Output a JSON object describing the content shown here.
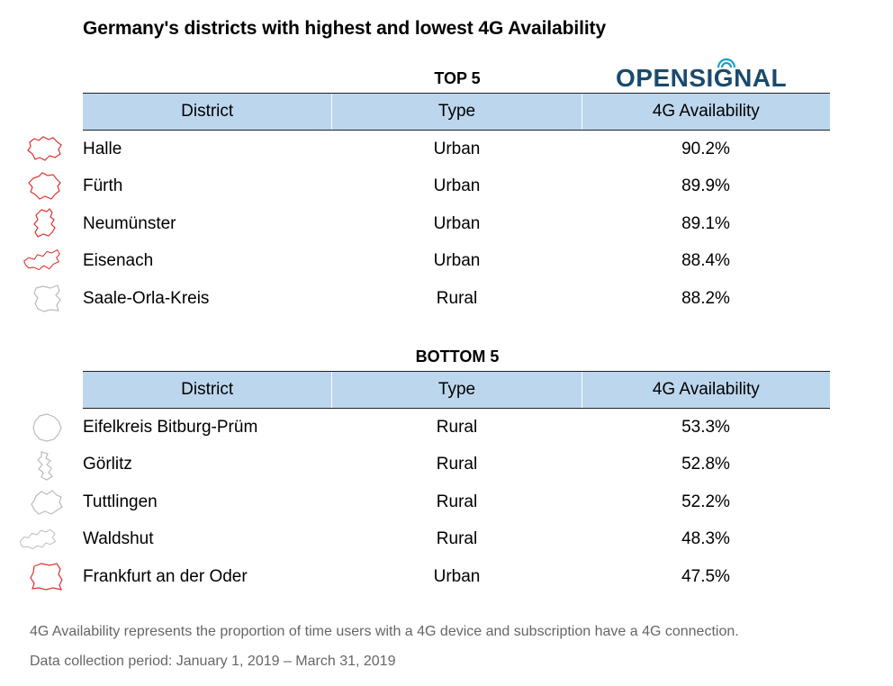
{
  "title": "Germany's districts with highest and lowest 4G Availability",
  "logo": {
    "text": "OPENSIGNAL",
    "color": "#1a4a6e"
  },
  "colors": {
    "header_bg": "#bcd6ee",
    "urban_map": "#e03030",
    "rural_map": "#bbbbbb"
  },
  "top": {
    "label": "TOP 5",
    "headers": [
      "District",
      "Type",
      "4G Availability"
    ],
    "rows": [
      {
        "district": "Halle",
        "type": "Urban",
        "availability": "90.2%",
        "icon": "halle-outline-icon"
      },
      {
        "district": "Fürth",
        "type": "Urban",
        "availability": "89.9%",
        "icon": "furth-outline-icon"
      },
      {
        "district": "Neumünster",
        "type": "Urban",
        "availability": "89.1%",
        "icon": "neumunster-outline-icon"
      },
      {
        "district": "Eisenach",
        "type": "Urban",
        "availability": "88.4%",
        "icon": "eisenach-outline-icon"
      },
      {
        "district": "Saale-Orla-Kreis",
        "type": "Rural",
        "availability": "88.2%",
        "icon": "saale-orla-kreis-outline-icon"
      }
    ]
  },
  "bottom": {
    "label": "BOTTOM 5",
    "headers": [
      "District",
      "Type",
      "4G Availability"
    ],
    "rows": [
      {
        "district": "Eifelkreis Bitburg-Prüm",
        "type": "Rural",
        "availability": "53.3%",
        "icon": "eifelkreis-outline-icon"
      },
      {
        "district": "Görlitz",
        "type": "Rural",
        "availability": "52.8%",
        "icon": "gorlitz-outline-icon"
      },
      {
        "district": "Tuttlingen",
        "type": "Rural",
        "availability": "52.2%",
        "icon": "tuttlingen-outline-icon"
      },
      {
        "district": "Waldshut",
        "type": "Rural",
        "availability": "48.3%",
        "icon": "waldshut-outline-icon"
      },
      {
        "district": "Frankfurt an der Oder",
        "type": "Urban",
        "availability": "47.5%",
        "icon": "frankfurt-oder-outline-icon"
      }
    ]
  },
  "footnotes": [
    "4G Availability represents the proportion of time users with a 4G device and subscription have a 4G connection.",
    "Data collection period: January 1, 2019 – March 31, 2019"
  ]
}
